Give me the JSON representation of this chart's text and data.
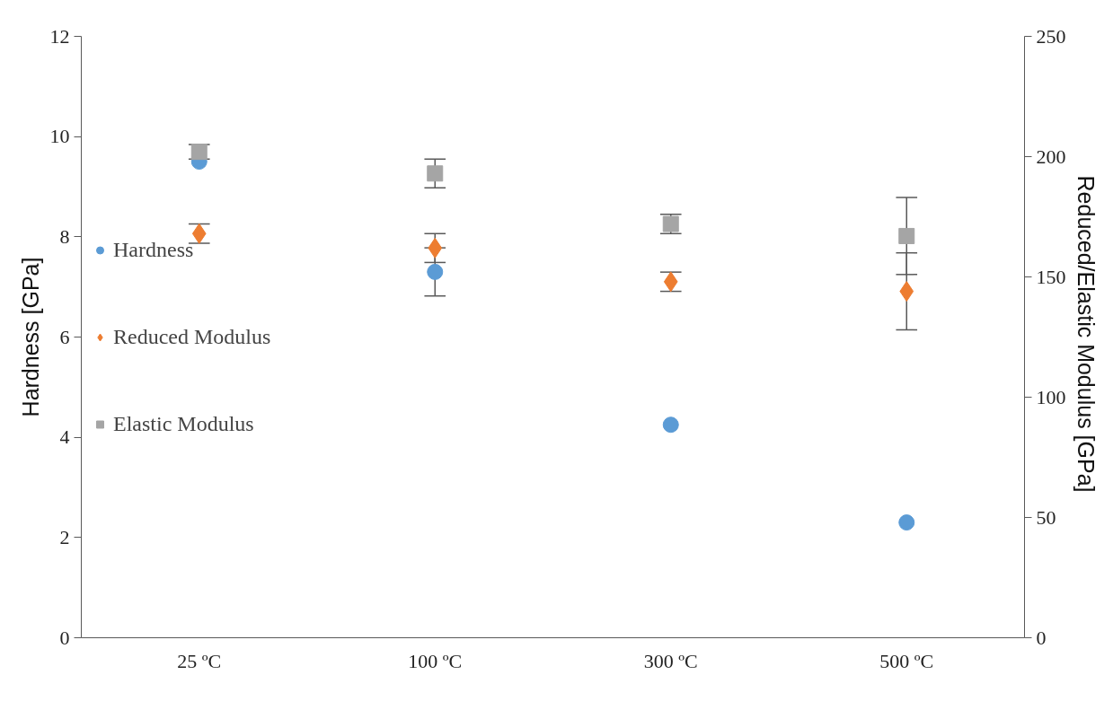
{
  "chart_data": {
    "type": "scatter",
    "categories": [
      "25 ºC",
      "100 ºC",
      "300 ºC",
      "500 ºC"
    ],
    "ylabel": "Hardness [GPa]",
    "y2label": "Reduced/Elastic  Modulus [GPa]",
    "ylim": [
      0,
      12
    ],
    "yticks": [
      0,
      2,
      4,
      6,
      8,
      10,
      12
    ],
    "y2lim": [
      0,
      250
    ],
    "y2ticks": [
      0,
      50,
      100,
      150,
      200,
      250
    ],
    "grid": false,
    "legend": "left",
    "series": [
      {
        "name": "Hardness",
        "color": "#5b9bd5",
        "marker": "circle",
        "values": [
          9.5,
          7.3,
          4.25,
          2.3
        ],
        "errors": [
          null,
          0.48,
          null,
          null
        ]
      },
      {
        "name": "Reduced Modulus",
        "color": "#ed7d31",
        "marker": "diamond",
        "axis": "y2",
        "values": [
          168,
          162,
          148,
          144
        ],
        "errors": [
          4,
          6,
          4,
          16
        ]
      },
      {
        "name": "Elastic Modulus",
        "color": "#a5a5a5",
        "marker": "square",
        "axis": "y2",
        "values": [
          202,
          193,
          172,
          167
        ],
        "errors": [
          3,
          6,
          4,
          16
        ]
      }
    ]
  }
}
